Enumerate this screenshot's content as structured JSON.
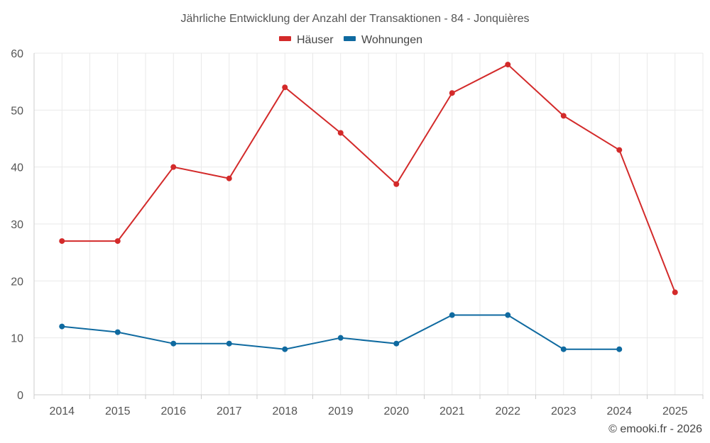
{
  "chart_data": {
    "type": "line",
    "title": "Jährliche Entwicklung der Anzahl der Transaktionen - 84 - Jonquières",
    "categories": [
      "2014",
      "2015",
      "2016",
      "2017",
      "2018",
      "2019",
      "2020",
      "2021",
      "2022",
      "2023",
      "2024",
      "2025"
    ],
    "series": [
      {
        "name": "Häuser",
        "color": "#d32a2a",
        "values": [
          27,
          27,
          40,
          38,
          54,
          46,
          37,
          53,
          58,
          49,
          43,
          18
        ]
      },
      {
        "name": "Wohnungen",
        "color": "#0f6aa0",
        "values": [
          12,
          11,
          9,
          9,
          8,
          10,
          9,
          14,
          14,
          8,
          8,
          null
        ]
      }
    ],
    "ylim": [
      0,
      60
    ],
    "yticks": [
      0,
      10,
      20,
      30,
      40,
      50,
      60
    ],
    "xlabel": "",
    "ylabel": "",
    "grid": true,
    "legend": "top-center"
  },
  "credit": "© emooki.fr - 2026"
}
